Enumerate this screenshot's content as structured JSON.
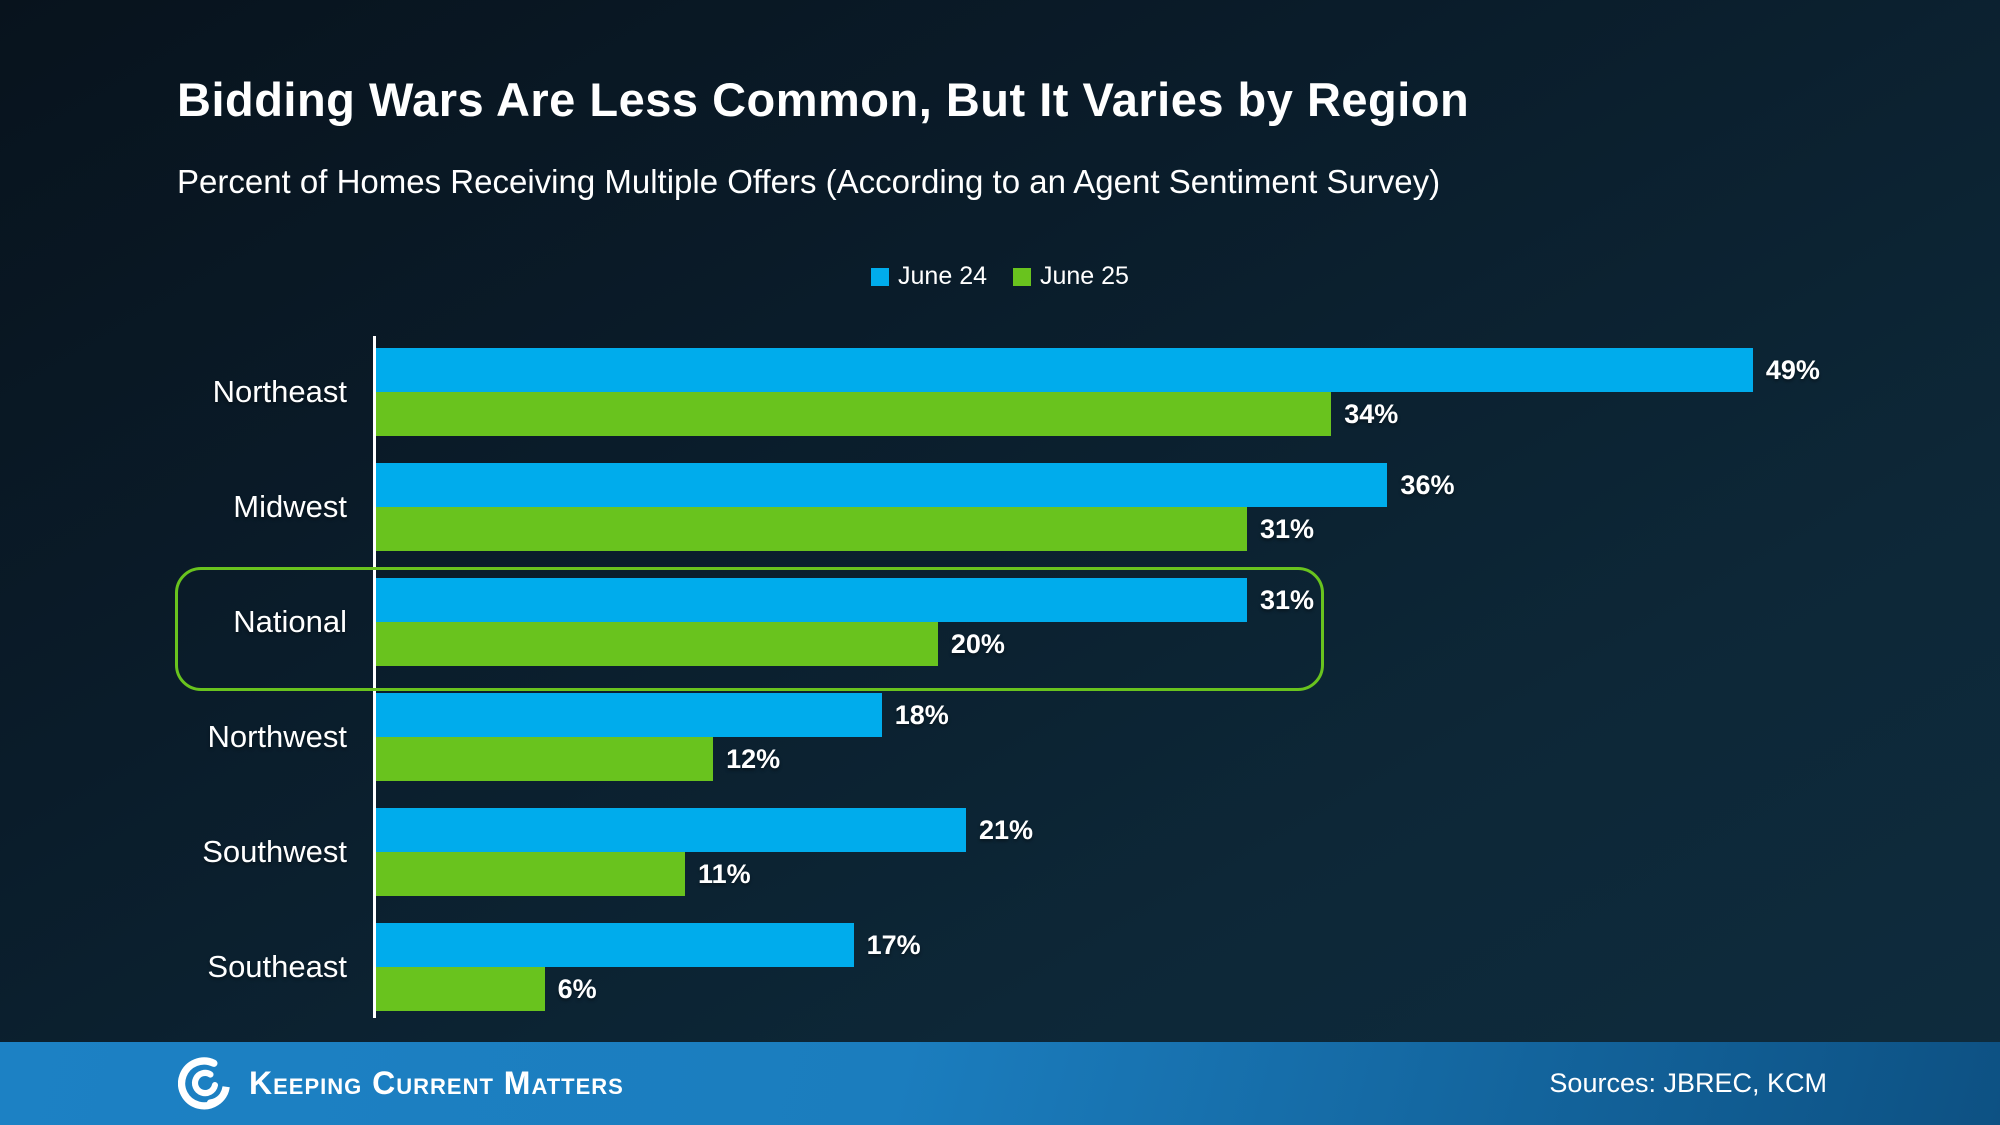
{
  "title": "Bidding Wars Are Less Common, But It Varies by Region",
  "subtitle": "Percent of Homes Receiving Multiple Offers (According to an Agent Sentiment Survey)",
  "chart_data": {
    "type": "bar",
    "orientation": "horizontal",
    "title": "Bidding Wars Are Less Common, But It Varies by Region",
    "subtitle": "Percent of Homes Receiving Multiple Offers (According to an Agent Sentiment Survey)",
    "categories": [
      "Northeast",
      "Midwest",
      "National",
      "Northwest",
      "Southwest",
      "Southeast"
    ],
    "series": [
      {
        "name": "June 24",
        "color": "#00ACEC",
        "values": [
          49,
          36,
          31,
          18,
          21,
          17
        ]
      },
      {
        "name": "June 25",
        "color": "#69C31E",
        "values": [
          34,
          31,
          20,
          12,
          11,
          6
        ]
      }
    ],
    "value_suffix": "%",
    "xlim": [
      0,
      57.8
    ],
    "grid": false,
    "legend_position": "top-center",
    "highlighted_category": "National",
    "highlight_color": "#69C31E"
  },
  "colors": {
    "background_dark": "#0B1E2B",
    "bar_blue": "#00ACEC",
    "bar_green": "#69C31E",
    "axis_white": "#FFFFFF",
    "footer_blue_left": "#1B7DBE",
    "footer_blue_right": "#0D5183"
  },
  "footer": {
    "brand": "Keeping Current Matters",
    "sources": "Sources: JBREC, KCM"
  }
}
